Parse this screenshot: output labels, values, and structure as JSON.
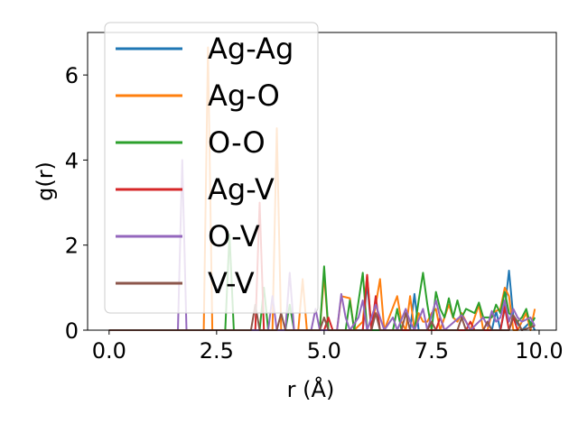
{
  "chart_data": {
    "type": "line",
    "xlabel": "r (Å)",
    "ylabel": "g(r)",
    "xlim": [
      -0.5,
      10.4
    ],
    "ylim": [
      0,
      7
    ],
    "xticks": [
      "0.0",
      "2.5",
      "5.0",
      "7.5",
      "10.0"
    ],
    "yticks": [
      "0",
      "2",
      "4",
      "6"
    ],
    "grid": false,
    "legend_position": "top-left",
    "series": [
      {
        "name": "Ag-Ag",
        "color": "#1f77b4",
        "points": [
          [
            0,
            0
          ],
          [
            5.9,
            0
          ],
          [
            6.0,
            1.1
          ],
          [
            6.1,
            0
          ],
          [
            7.0,
            0
          ],
          [
            7.1,
            0.85
          ],
          [
            7.2,
            0
          ],
          [
            8.9,
            0
          ],
          [
            9.0,
            0.45
          ],
          [
            9.1,
            0
          ],
          [
            9.2,
            0.5
          ],
          [
            9.3,
            1.4
          ],
          [
            9.4,
            0.3
          ],
          [
            9.6,
            0
          ],
          [
            9.8,
            0.2
          ],
          [
            9.9,
            0
          ]
        ]
      },
      {
        "name": "Ag-O",
        "color": "#ff7f0e",
        "points": [
          [
            0,
            0
          ],
          [
            2.2,
            0
          ],
          [
            2.3,
            6.65
          ],
          [
            2.4,
            0
          ],
          [
            3.8,
            0
          ],
          [
            3.9,
            4.75
          ],
          [
            4.0,
            0
          ],
          [
            4.4,
            0
          ],
          [
            4.5,
            1.2
          ],
          [
            4.6,
            0
          ],
          [
            4.9,
            0
          ],
          [
            5.0,
            1.3
          ],
          [
            5.1,
            0
          ],
          [
            5.3,
            0
          ],
          [
            5.4,
            0.8
          ],
          [
            5.6,
            0.75
          ],
          [
            5.7,
            0
          ],
          [
            5.9,
            0.2
          ],
          [
            6.0,
            1.3
          ],
          [
            6.1,
            0
          ],
          [
            6.3,
            1.2
          ],
          [
            6.4,
            0
          ],
          [
            6.7,
            0.8
          ],
          [
            6.8,
            0.2
          ],
          [
            6.9,
            0
          ],
          [
            7.0,
            0.8
          ],
          [
            7.1,
            0
          ],
          [
            7.2,
            0.4
          ],
          [
            7.3,
            0.2
          ],
          [
            7.4,
            0.2
          ],
          [
            7.5,
            0.4
          ],
          [
            7.6,
            0.5
          ],
          [
            7.7,
            0
          ],
          [
            7.9,
            0.6
          ],
          [
            8.0,
            0.3
          ],
          [
            8.1,
            0.2
          ],
          [
            8.2,
            0.4
          ],
          [
            8.4,
            0
          ],
          [
            8.5,
            0.3
          ],
          [
            8.6,
            0.6
          ],
          [
            8.7,
            0
          ],
          [
            8.8,
            0
          ],
          [
            8.9,
            0.4
          ],
          [
            9.1,
            0.5
          ],
          [
            9.2,
            1.0
          ],
          [
            9.3,
            0.8
          ],
          [
            9.4,
            0
          ],
          [
            9.5,
            0
          ],
          [
            9.6,
            0.2
          ],
          [
            9.7,
            0.4
          ],
          [
            9.8,
            0
          ],
          [
            9.9,
            0.5
          ]
        ]
      },
      {
        "name": "O-O",
        "color": "#2ca02c",
        "points": [
          [
            0,
            0
          ],
          [
            2.7,
            0
          ],
          [
            2.8,
            2.25
          ],
          [
            2.9,
            0
          ],
          [
            3.5,
            0
          ],
          [
            3.6,
            1.0
          ],
          [
            3.7,
            0
          ],
          [
            4.1,
            0
          ],
          [
            4.2,
            0.6
          ],
          [
            4.3,
            0
          ],
          [
            4.9,
            0
          ],
          [
            5.0,
            1.5
          ],
          [
            5.1,
            0
          ],
          [
            5.5,
            0
          ],
          [
            5.6,
            0.7
          ],
          [
            5.7,
            0
          ],
          [
            5.9,
            1.35
          ],
          [
            6.0,
            0
          ],
          [
            6.6,
            0
          ],
          [
            6.7,
            0.5
          ],
          [
            6.8,
            0
          ],
          [
            7.1,
            0
          ],
          [
            7.2,
            0.7
          ],
          [
            7.3,
            1.35
          ],
          [
            7.4,
            0.6
          ],
          [
            7.5,
            0
          ],
          [
            7.6,
            0.9
          ],
          [
            7.7,
            0.5
          ],
          [
            7.8,
            0.3
          ],
          [
            7.9,
            0.75
          ],
          [
            8.0,
            0.3
          ],
          [
            8.1,
            0.7
          ],
          [
            8.2,
            0.3
          ],
          [
            8.3,
            0.5
          ],
          [
            8.5,
            0.4
          ],
          [
            8.6,
            0.65
          ],
          [
            8.7,
            0.3
          ],
          [
            8.9,
            0.3
          ],
          [
            9.0,
            0.6
          ],
          [
            9.1,
            0.4
          ],
          [
            9.2,
            0.9
          ],
          [
            9.3,
            0.4
          ],
          [
            9.5,
            0.2
          ],
          [
            9.6,
            0.3
          ],
          [
            9.7,
            0.5
          ],
          [
            9.8,
            0.1
          ],
          [
            9.9,
            0.3
          ]
        ]
      },
      {
        "name": "Ag-V",
        "color": "#d62728",
        "points": [
          [
            0,
            0
          ],
          [
            3.4,
            0
          ],
          [
            3.5,
            3.0
          ],
          [
            3.6,
            0
          ],
          [
            5.0,
            0
          ],
          [
            5.1,
            0.3
          ],
          [
            5.2,
            0
          ],
          [
            5.9,
            0
          ],
          [
            6.0,
            1.3
          ],
          [
            6.1,
            0
          ],
          [
            6.2,
            0.8
          ],
          [
            6.3,
            0
          ],
          [
            7.6,
            0
          ],
          [
            7.7,
            0.3
          ],
          [
            7.8,
            0
          ],
          [
            8.3,
            0
          ],
          [
            8.4,
            0.2
          ],
          [
            8.5,
            0
          ],
          [
            9.1,
            0
          ],
          [
            9.2,
            0.55
          ],
          [
            9.3,
            0
          ],
          [
            9.4,
            0.3
          ],
          [
            9.5,
            0
          ]
        ]
      },
      {
        "name": "O-V",
        "color": "#9467bd",
        "points": [
          [
            0,
            0
          ],
          [
            1.6,
            0
          ],
          [
            1.7,
            4.0
          ],
          [
            1.8,
            0
          ],
          [
            3.7,
            0
          ],
          [
            3.8,
            0.8
          ],
          [
            3.9,
            0
          ],
          [
            4.1,
            0
          ],
          [
            4.2,
            1.35
          ],
          [
            4.3,
            0
          ],
          [
            4.7,
            0
          ],
          [
            4.8,
            0.5
          ],
          [
            4.9,
            0
          ],
          [
            5.3,
            0
          ],
          [
            5.4,
            0.85
          ],
          [
            5.5,
            0.3
          ],
          [
            5.6,
            0
          ],
          [
            5.8,
            0.3
          ],
          [
            5.9,
            0.7
          ],
          [
            6.0,
            0
          ],
          [
            6.2,
            0.6
          ],
          [
            6.3,
            0.3
          ],
          [
            6.4,
            0
          ],
          [
            6.6,
            0.3
          ],
          [
            6.7,
            0
          ],
          [
            6.9,
            0.5
          ],
          [
            7.0,
            0.2
          ],
          [
            7.1,
            0
          ],
          [
            7.3,
            0.5
          ],
          [
            7.4,
            0
          ],
          [
            7.6,
            0.7
          ],
          [
            7.7,
            0.3
          ],
          [
            7.8,
            0
          ],
          [
            8.2,
            0.35
          ],
          [
            8.3,
            0.2
          ],
          [
            8.4,
            0
          ],
          [
            8.7,
            0.3
          ],
          [
            8.8,
            0.1
          ],
          [
            8.9,
            0.45
          ],
          [
            9.0,
            0.2
          ],
          [
            9.1,
            0.3
          ],
          [
            9.2,
            0.7
          ],
          [
            9.3,
            0.2
          ],
          [
            9.4,
            0.5
          ],
          [
            9.5,
            0.3
          ],
          [
            9.6,
            0.2
          ],
          [
            9.8,
            0.3
          ],
          [
            9.9,
            0.1
          ]
        ]
      },
      {
        "name": "V-V",
        "color": "#8c564b",
        "points": [
          [
            0,
            0
          ],
          [
            3.3,
            0
          ],
          [
            3.4,
            0.6
          ],
          [
            3.5,
            0
          ],
          [
            3.9,
            0
          ],
          [
            4.0,
            0.4
          ],
          [
            4.1,
            0
          ],
          [
            4.9,
            0
          ],
          [
            5.0,
            0.3
          ],
          [
            5.1,
            0
          ],
          [
            6.1,
            0
          ],
          [
            6.2,
            0.4
          ],
          [
            6.3,
            0
          ],
          [
            6.8,
            0
          ],
          [
            6.9,
            0.4
          ],
          [
            7.0,
            0
          ],
          [
            7.4,
            0
          ],
          [
            7.5,
            0.2
          ],
          [
            7.6,
            0
          ],
          [
            8.1,
            0
          ],
          [
            8.2,
            0.3
          ],
          [
            8.3,
            0
          ],
          [
            8.7,
            0
          ],
          [
            8.8,
            0.2
          ],
          [
            8.9,
            0
          ],
          [
            9.3,
            0
          ],
          [
            9.4,
            0.35
          ],
          [
            9.5,
            0.2
          ],
          [
            9.6,
            0
          ],
          [
            9.9,
            0.1
          ]
        ]
      }
    ]
  }
}
